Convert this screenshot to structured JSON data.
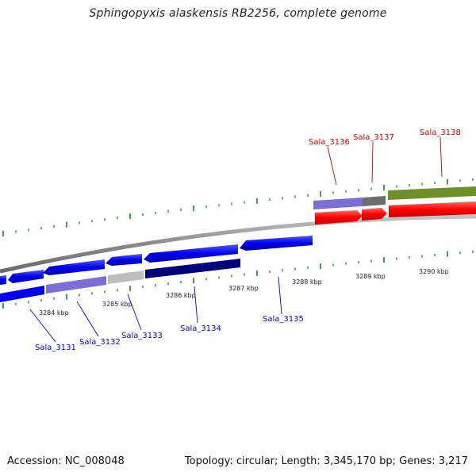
{
  "title": "Sphingopyxis alaskensis RB2256, complete genome",
  "footer": {
    "accession": "Accession: NC_008048",
    "stats": "Topology: circular; Length: 3,345,170 bp; Genes: 3,217"
  },
  "scale": {
    "unit_label": "kbp",
    "tick_labels": [
      "3284 kbp",
      "3285 kbp",
      "3286 kbp",
      "3287 kbp",
      "3288 kbp",
      "3289 kbp",
      "3290 kbp"
    ]
  },
  "genes": [
    {
      "label": "Sala_3131",
      "color": "#0000cc",
      "strand": "minus"
    },
    {
      "label": "Sala_3132",
      "color": "#0000cc",
      "strand": "minus"
    },
    {
      "label": "Sala_3133",
      "color": "#0000cc",
      "strand": "minus"
    },
    {
      "label": "Sala_3134",
      "color": "#0000cc",
      "strand": "minus"
    },
    {
      "label": "Sala_3135",
      "color": "#0000cc",
      "strand": "minus"
    },
    {
      "label": "Sala_3136",
      "color": "#cc0000",
      "strand": "plus"
    },
    {
      "label": "Sala_3137",
      "color": "#cc0000",
      "strand": "plus"
    },
    {
      "label": "Sala_3138",
      "color": "#cc0000",
      "strand": "plus"
    }
  ],
  "colors": {
    "backbone": "#8a8a8a",
    "plus_gene": "#ff0000",
    "minus_gene": "#0000ee",
    "tick": "#1a7f1a",
    "plus_label": "#cc0000",
    "minus_label": "#0000cc",
    "cog_purple": "#7b6fd6",
    "cog_navy": "#00007a",
    "cog_gray": "#bdbdbd",
    "cog_darkgray": "#6e6e6e",
    "cog_olive": "#6f8f2a"
  }
}
